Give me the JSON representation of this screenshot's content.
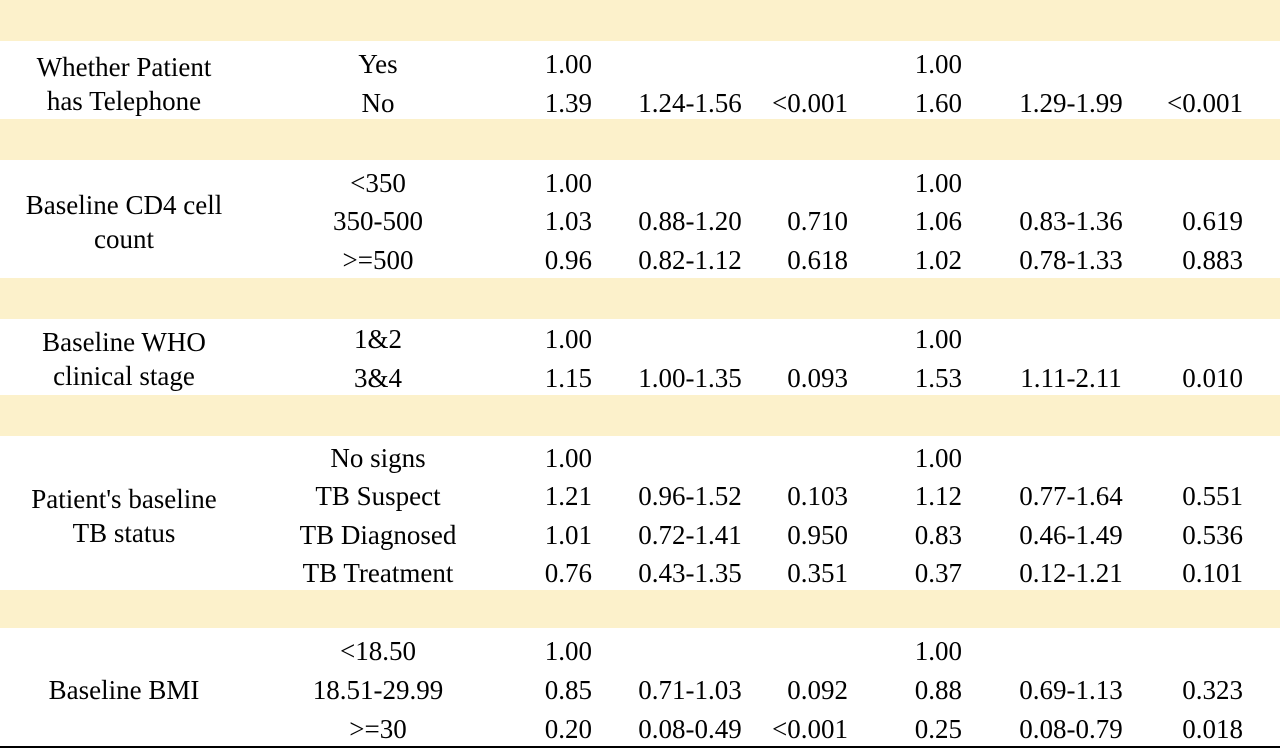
{
  "colors": {
    "band": "#fcf1cb",
    "text": "#000000",
    "rule": "#000000"
  },
  "groups": [
    {
      "variable": [
        "Whether Patient",
        "has Telephone"
      ],
      "rows": [
        {
          "level": "Yes",
          "hr1": "1.00",
          "ci1": "",
          "p1": "",
          "hr2": "1.00",
          "ci2": "",
          "p2": ""
        },
        {
          "level": "No",
          "hr1": "1.39",
          "ci1": "1.24-1.56",
          "p1": "<0.001",
          "hr2": "1.60",
          "ci2": "1.29-1.99",
          "p2": "<0.001"
        }
      ]
    },
    {
      "variable": [
        "Baseline CD4 cell",
        "count"
      ],
      "rows": [
        {
          "level": "<350",
          "hr1": "1.00",
          "ci1": "",
          "p1": "",
          "hr2": "1.00",
          "ci2": "",
          "p2": ""
        },
        {
          "level": "350-500",
          "hr1": "1.03",
          "ci1": "0.88-1.20",
          "p1": "0.710",
          "hr2": "1.06",
          "ci2": "0.83-1.36",
          "p2": "0.619"
        },
        {
          "level": ">=500",
          "hr1": "0.96",
          "ci1": "0.82-1.12",
          "p1": "0.618",
          "hr2": "1.02",
          "ci2": "0.78-1.33",
          "p2": "0.883"
        }
      ]
    },
    {
      "variable": [
        "Baseline WHO",
        "clinical stage"
      ],
      "rows": [
        {
          "level": "1&2",
          "hr1": "1.00",
          "ci1": "",
          "p1": "",
          "hr2": "1.00",
          "ci2": "",
          "p2": ""
        },
        {
          "level": "3&4",
          "hr1": "1.15",
          "ci1": "1.00-1.35",
          "p1": "0.093",
          "hr2": "1.53",
          "ci2": "1.11-2.11",
          "p2": "0.010"
        }
      ]
    },
    {
      "variable": [
        "Patient's baseline",
        "TB status"
      ],
      "rows": [
        {
          "level": "No signs",
          "hr1": "1.00",
          "ci1": "",
          "p1": "",
          "hr2": "1.00",
          "ci2": "",
          "p2": ""
        },
        {
          "level": "TB Suspect",
          "hr1": "1.21",
          "ci1": "0.96-1.52",
          "p1": "0.103",
          "hr2": "1.12",
          "ci2": "0.77-1.64",
          "p2": "0.551"
        },
        {
          "level": "TB Diagnosed",
          "hr1": "1.01",
          "ci1": "0.72-1.41",
          "p1": "0.950",
          "hr2": "0.83",
          "ci2": "0.46-1.49",
          "p2": "0.536"
        },
        {
          "level": "TB Treatment",
          "hr1": "0.76",
          "ci1": "0.43-1.35",
          "p1": "0.351",
          "hr2": "0.37",
          "ci2": "0.12-1.21",
          "p2": "0.101"
        }
      ]
    },
    {
      "variable": [
        "Baseline BMI"
      ],
      "rows": [
        {
          "level": "<18.50",
          "hr1": "1.00",
          "ci1": "",
          "p1": "",
          "hr2": "1.00",
          "ci2": "",
          "p2": ""
        },
        {
          "level": "18.51-29.99",
          "hr1": "0.85",
          "ci1": "0.71-1.03",
          "p1": "0.092",
          "hr2": "0.88",
          "ci2": "0.69-1.13",
          "p2": "0.323"
        },
        {
          "level": ">=30",
          "hr1": "0.20",
          "ci1": "0.08-0.49",
          "p1": "<0.001",
          "hr2": "0.25",
          "ci2": "0.08-0.79",
          "p2": "0.018"
        }
      ]
    }
  ]
}
